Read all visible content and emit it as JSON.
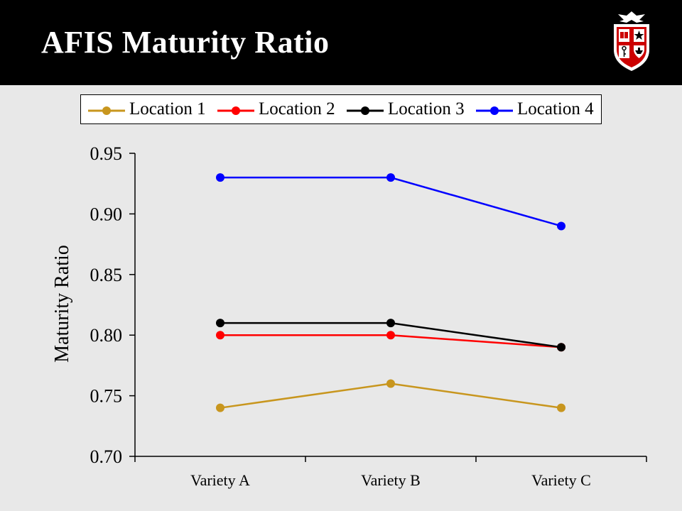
{
  "header": {
    "title": "AFIS Maturity Ratio"
  },
  "logo": {
    "icon": "university-shield-icon",
    "colors": {
      "red": "#cc0000",
      "black": "#000000",
      "white": "#ffffff"
    }
  },
  "chart_data": {
    "type": "line",
    "title": "",
    "xlabel": "",
    "ylabel": "Maturity Ratio",
    "categories": [
      "Variety A",
      "Variety B",
      "Variety C"
    ],
    "ylim": [
      0.7,
      0.95
    ],
    "yticks": [
      "0.70",
      "0.75",
      "0.80",
      "0.85",
      "0.90",
      "0.95"
    ],
    "grid": false,
    "legend": "top",
    "series": [
      {
        "name": "Location 1",
        "color": "#c8961e",
        "values": [
          0.74,
          0.76,
          0.74
        ]
      },
      {
        "name": "Location 2",
        "color": "#ff0000",
        "values": [
          0.8,
          0.8,
          0.79
        ]
      },
      {
        "name": "Location 3",
        "color": "#000000",
        "values": [
          0.81,
          0.81,
          0.79
        ]
      },
      {
        "name": "Location 4",
        "color": "#0000ff",
        "values": [
          0.93,
          0.93,
          0.89
        ]
      }
    ]
  }
}
